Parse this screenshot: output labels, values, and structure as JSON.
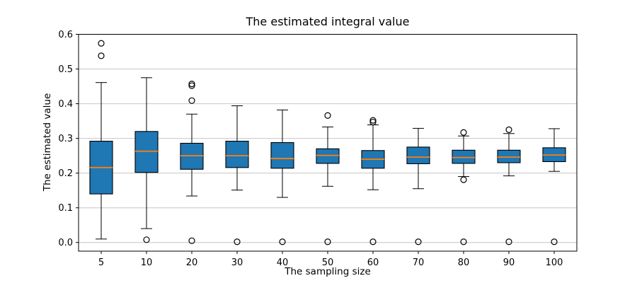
{
  "chart_data": {
    "type": "boxplot",
    "title": "The estimated integral value",
    "xlabel": "The sampling size",
    "ylabel": "The estimated value",
    "categories": [
      "5",
      "10",
      "20",
      "30",
      "40",
      "50",
      "60",
      "70",
      "80",
      "90",
      "100"
    ],
    "yticks": [
      0.0,
      0.1,
      0.2,
      0.3,
      0.4,
      0.5,
      0.6
    ],
    "ytick_labels": [
      "0.0",
      "0.1",
      "0.2",
      "0.3",
      "0.4",
      "0.5",
      "0.6"
    ],
    "ylim": [
      -0.025,
      0.6
    ],
    "grid": true,
    "legend": false,
    "boxes": [
      {
        "category": "5",
        "whisker_low": 0.01,
        "q1": 0.14,
        "median": 0.216,
        "q3": 0.292,
        "whisker_high": 0.461,
        "outliers": [
          0.574,
          0.538
        ]
      },
      {
        "category": "10",
        "whisker_low": 0.04,
        "q1": 0.202,
        "median": 0.263,
        "q3": 0.32,
        "whisker_high": 0.475,
        "outliers": [
          0.008
        ]
      },
      {
        "category": "20",
        "whisker_low": 0.134,
        "q1": 0.211,
        "median": 0.25,
        "q3": 0.286,
        "whisker_high": 0.37,
        "outliers": [
          0.457,
          0.452,
          0.409,
          0.005
        ]
      },
      {
        "category": "30",
        "whisker_low": 0.151,
        "q1": 0.216,
        "median": 0.25,
        "q3": 0.292,
        "whisker_high": 0.394,
        "outliers": [
          0.002
        ]
      },
      {
        "category": "40",
        "whisker_low": 0.13,
        "q1": 0.214,
        "median": 0.242,
        "q3": 0.288,
        "whisker_high": 0.382,
        "outliers": [
          0.002
        ]
      },
      {
        "category": "50",
        "whisker_low": 0.162,
        "q1": 0.228,
        "median": 0.251,
        "q3": 0.27,
        "whisker_high": 0.333,
        "outliers": [
          0.366,
          0.002
        ]
      },
      {
        "category": "60",
        "whisker_low": 0.152,
        "q1": 0.214,
        "median": 0.24,
        "q3": 0.265,
        "whisker_high": 0.339,
        "outliers": [
          0.352,
          0.347,
          0.002
        ]
      },
      {
        "category": "70",
        "whisker_low": 0.155,
        "q1": 0.227,
        "median": 0.246,
        "q3": 0.275,
        "whisker_high": 0.329,
        "outliers": [
          0.002
        ]
      },
      {
        "category": "80",
        "whisker_low": 0.19,
        "q1": 0.228,
        "median": 0.245,
        "q3": 0.266,
        "whisker_high": 0.307,
        "outliers": [
          0.317,
          0.181,
          0.002
        ]
      },
      {
        "category": "90",
        "whisker_low": 0.192,
        "q1": 0.23,
        "median": 0.246,
        "q3": 0.266,
        "whisker_high": 0.314,
        "outliers": [
          0.325,
          0.002
        ]
      },
      {
        "category": "100",
        "whisker_low": 0.205,
        "q1": 0.233,
        "median": 0.252,
        "q3": 0.273,
        "whisker_high": 0.328,
        "outliers": [
          0.002
        ]
      }
    ],
    "colors": {
      "box_fill": "#1f77b4",
      "box_edge": "#000000",
      "median_line": "#ff7f0e",
      "whisker": "#000000",
      "outlier_edge": "#000000",
      "grid_line": "#c6c6c6",
      "spine": "#000000",
      "text": "#000000",
      "background": "#ffffff"
    }
  }
}
